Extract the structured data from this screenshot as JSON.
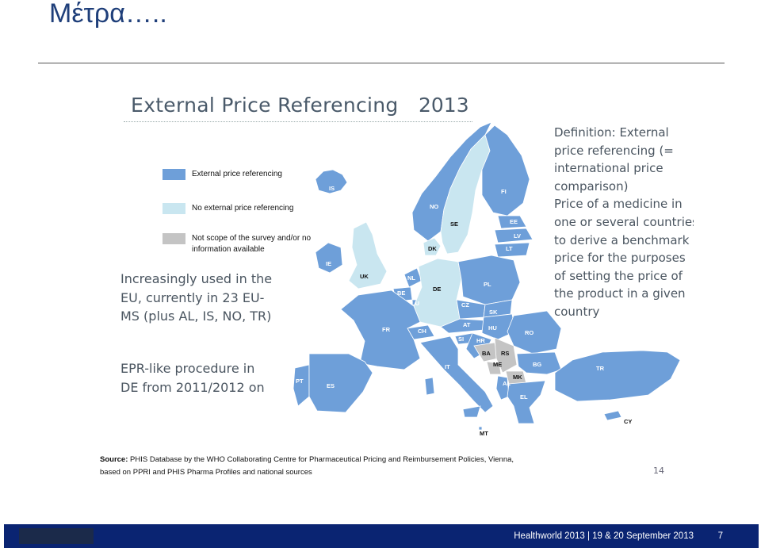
{
  "slide": {
    "title": "Μέτρα….."
  },
  "map": {
    "title": "External Price Referencing",
    "year": "2013",
    "legend": [
      {
        "label": "External price referencing",
        "color": "#6e9fd9"
      },
      {
        "label": "No external price referencing",
        "color": "#c9e6f0"
      },
      {
        "label": "Not scope of the survey and/or no information available",
        "color": "#c4c4c4"
      }
    ],
    "note_usage": [
      "Increasingly used in the",
      "EU, currently in 23 EU-",
      "MS (plus AL, IS, NO, TR)"
    ],
    "note_de": [
      "EPR-like procedure in",
      "DE from 2011/2012 on"
    ],
    "definition": [
      "Definition: External",
      "price referencing (=",
      "international price",
      "comparison)",
      "Price of a medicine in",
      "one or several countries",
      "to derive a benchmark",
      "price for the purposes",
      "of setting the price of",
      "the product in a given",
      "country"
    ],
    "countries": {
      "IS": "IS",
      "NO": "NO",
      "SE": "SE",
      "FI": "FI",
      "EE": "EE",
      "LV": "LV",
      "LT": "LT",
      "DK": "DK",
      "IE": "IE",
      "UK": "UK",
      "NL": "NL",
      "BE": "BE",
      "LU": "LU",
      "DE": "DE",
      "PL": "PL",
      "CZ": "CZ",
      "SK": "SK",
      "AT": "AT",
      "HU": "HU",
      "CH": "CH",
      "FR": "FR",
      "SI": "SI",
      "HR": "HR",
      "RO": "RO",
      "BA": "BA",
      "RS": "RS",
      "ME": "ME",
      "MK": "MK",
      "AL": "AL",
      "BG": "BG",
      "IT": "IT",
      "EL": "EL",
      "PT": "PT",
      "ES": "ES",
      "TR": "TR",
      "CY": "CY",
      "MT": "MT"
    },
    "source_label": "Source:",
    "source_text": "PHIS Database by the WHO Collaborating Centre for Pharmaceutical Pricing and Reimbursement Policies, Vienna,",
    "source_text2": "based on PPRI and PHIS Pharma Profiles and national sources",
    "page_number": "14"
  },
  "footer": {
    "text": "Healthworld 2013 | 19 & 20 September 2013",
    "page": "7"
  }
}
